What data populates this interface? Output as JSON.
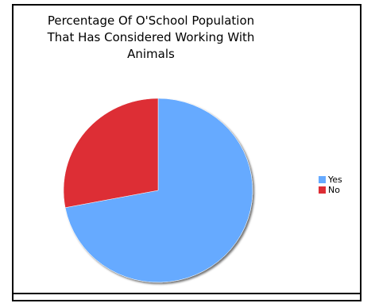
{
  "chart_data": {
    "type": "pie",
    "title_lines": [
      "Percentage Of O'School Population",
      "That Has Considered Working With",
      "Animals"
    ],
    "categories": [
      "Yes",
      "No"
    ],
    "values": [
      72,
      28
    ],
    "colors": [
      "#66aaff",
      "#dd2d35"
    ],
    "legend_position": "right",
    "legend": [
      {
        "label": "Yes",
        "color": "#66aaff"
      },
      {
        "label": "No",
        "color": "#dd2d35"
      }
    ]
  }
}
